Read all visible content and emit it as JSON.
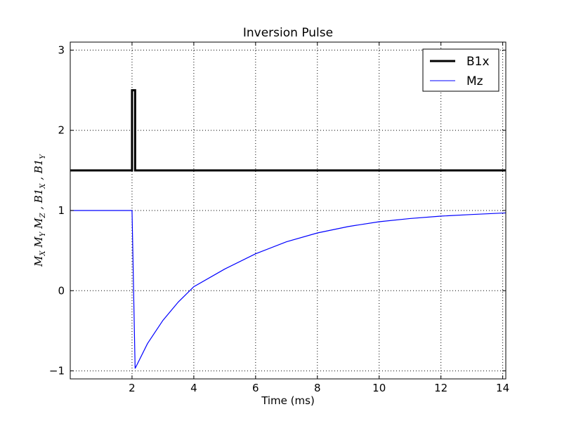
{
  "chart_data": {
    "type": "line",
    "title": "Inversion Pulse",
    "xlabel": "Time (ms)",
    "ylabel": "M_X  M_Y  M_Z , B1_X , B1_Y",
    "xlim": [
      0,
      14.1
    ],
    "ylim": [
      -1.1,
      3.1
    ],
    "xticks": [
      2,
      4,
      6,
      8,
      10,
      12,
      14
    ],
    "yticks": [
      -1,
      0,
      1,
      2,
      3
    ],
    "xtick_labels": [
      "2",
      "4",
      "6",
      "8",
      "10",
      "12",
      "14"
    ],
    "ytick_labels": [
      "−1",
      "0",
      "1",
      "2",
      "3"
    ],
    "grid": true,
    "legend_position": "top-right",
    "series": [
      {
        "name": "B1x",
        "color": "#000000",
        "style": "thick",
        "x": [
          0,
          2.0,
          2.0,
          2.1,
          2.1,
          14.1
        ],
        "y": [
          1.5,
          1.5,
          2.5,
          2.5,
          1.5,
          1.5
        ]
      },
      {
        "name": "Mz",
        "color": "#0000ff",
        "style": "thin",
        "x": [
          0,
          1.0,
          2.0,
          2.1,
          2.5,
          3.0,
          3.5,
          4.0,
          5.0,
          6.0,
          7.0,
          8.0,
          9.0,
          10.0,
          11.0,
          12.0,
          13.0,
          14.1
        ],
        "y": [
          1.0,
          1.0,
          1.0,
          -0.97,
          -0.66,
          -0.37,
          -0.14,
          0.05,
          0.27,
          0.46,
          0.61,
          0.72,
          0.8,
          0.86,
          0.9,
          0.93,
          0.95,
          0.97
        ]
      }
    ]
  }
}
